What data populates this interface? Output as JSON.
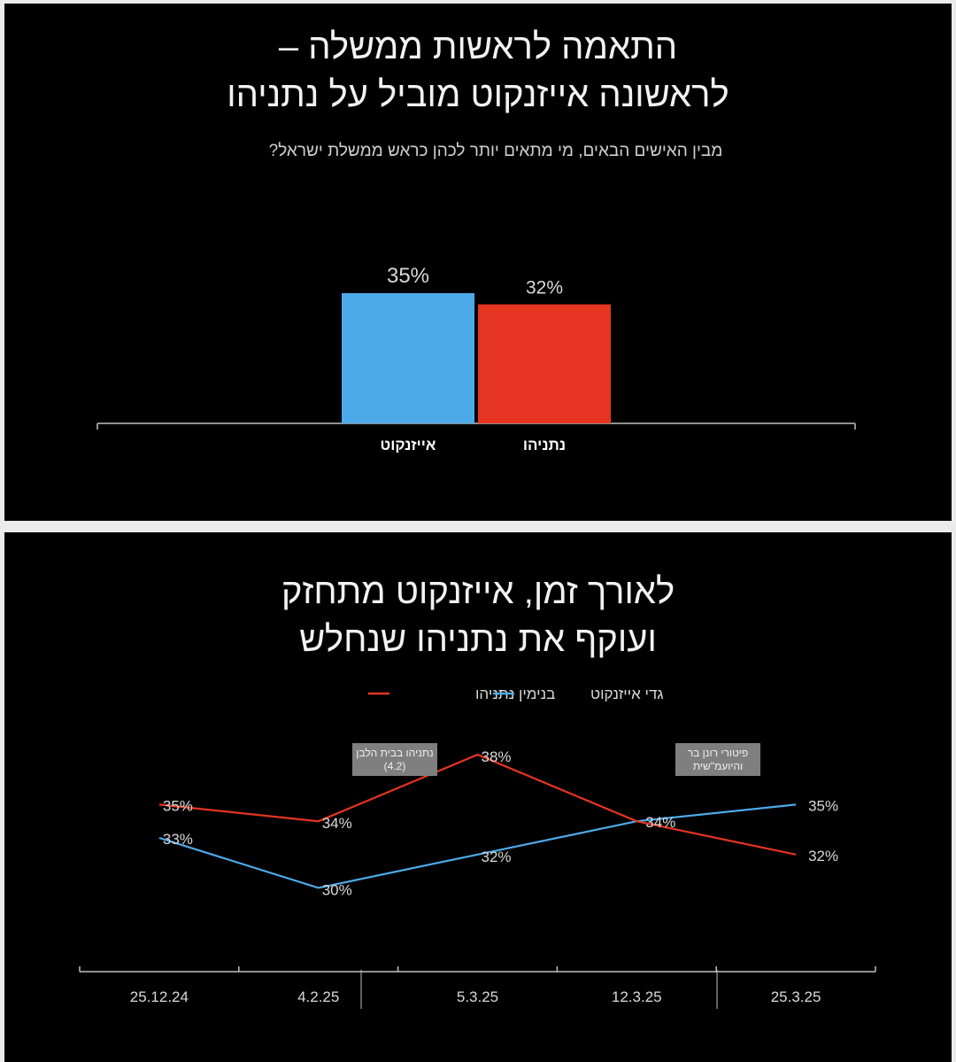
{
  "colors": {
    "background": "#000000",
    "eisenkot": "#4daae9",
    "netanyahu": "#e53422",
    "axis": "#bfbfbf",
    "label": "#d9d9d9",
    "annotation_bg": "#7f7f7f"
  },
  "slide1": {
    "title_line1": "התאמה לראשות  ממשלה –",
    "title_line2": "לראשונה אייזנקוט מוביל על נתניהו",
    "subtitle": "מבין האישים הבאים, מי מתאים יותר לכהן כראש ממשלת ישראל?"
  },
  "slide2": {
    "title_line1": "לאורך זמן, אייזנקוט מתחזק",
    "title_line2": "ועוקף את נתניהו שנחלש",
    "annotations": [
      {
        "text": "נתניהו בבית הלבן (4.2)"
      },
      {
        "text": "פיטורי רונן בר והיועמ\"שית"
      }
    ]
  },
  "chart_data": [
    {
      "type": "bar",
      "title": "התאמה לראשות  ממשלה – לראשונה אייזנקוט מוביל על נתניהו",
      "subtitle": "מבין האישים הבאים, מי מתאים יותר לכהן כראש ממשלת ישראל?",
      "categories": [
        "אייזנקוט",
        "נתניהו"
      ],
      "values": [
        35,
        32
      ],
      "data_labels": [
        "35%",
        "32%"
      ],
      "ylim": [
        0,
        50
      ],
      "grid": false
    },
    {
      "type": "line",
      "title": "לאורך זמן, אייזנקוט מתחזק ועוקף את נתניהו שנחלש",
      "categories": [
        "25.12.24",
        "4.2.25",
        "5.3.25",
        "12.3.25",
        "25.3.25"
      ],
      "legend_position": "top",
      "series": [
        {
          "name": "בנימין נתניהו",
          "values": [
            35,
            34,
            38,
            34,
            32
          ],
          "labels": [
            "35%",
            "34%",
            "38%",
            "34%",
            "32%"
          ]
        },
        {
          "name": "גדי אייזנקוט",
          "values": [
            33,
            30,
            32,
            34,
            35
          ],
          "labels": [
            "33%",
            "30%",
            "32%",
            "34%",
            "35%"
          ]
        }
      ],
      "ylim": [
        20,
        40
      ],
      "grid": false
    }
  ]
}
